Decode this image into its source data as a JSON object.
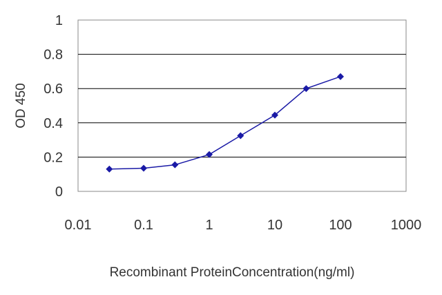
{
  "chart_data": {
    "type": "line",
    "title": "",
    "xlabel": "Recombinant ProteinConcentration(ng/ml)",
    "ylabel": "OD 450",
    "x_scale": "log",
    "xlim": [
      0.01,
      1000
    ],
    "ylim": [
      0,
      1
    ],
    "x_ticks": [
      "0.01",
      "0.1",
      "1",
      "10",
      "100",
      "1000"
    ],
    "y_ticks": [
      "0",
      "0.2",
      "0.4",
      "0.6",
      "0.8",
      "1"
    ],
    "grid": "horizontal",
    "series": [
      {
        "x": [
          0.03,
          0.1,
          0.3,
          1,
          3,
          10,
          30,
          100
        ],
        "y": [
          0.13,
          0.135,
          0.155,
          0.215,
          0.325,
          0.445,
          0.6,
          0.67
        ]
      }
    ],
    "colors": {
      "series": "#1a1aa6",
      "grid": "#000000",
      "plot_border": "#888888"
    }
  }
}
